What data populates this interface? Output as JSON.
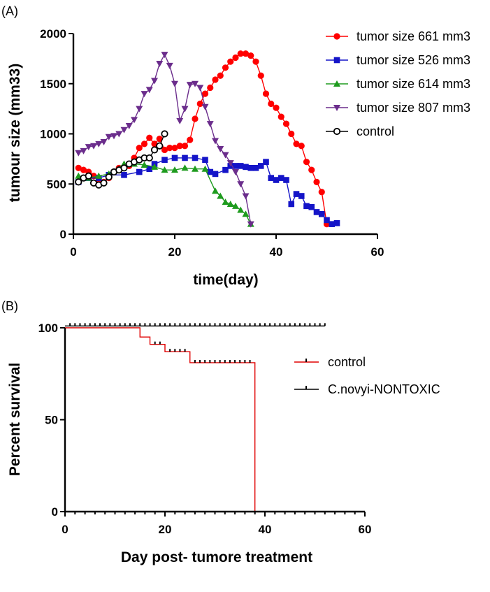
{
  "chart_data": [
    {
      "panel": "(A)",
      "type": "line",
      "xlabel": "time(day)",
      "ylabel": "tumour size (mm33)",
      "xlim": [
        0,
        60
      ],
      "ylim": [
        0,
        2000
      ],
      "xticks": [
        "0",
        "20",
        "40",
        "60"
      ],
      "yticks": [
        "0",
        "500",
        "1000",
        "1500",
        "2000"
      ],
      "legend_position": "top-right",
      "series": [
        {
          "name": "tumor size 661 mm3",
          "color": "#ff0000",
          "marker": "circle",
          "x": [
            1,
            2,
            3,
            4,
            5,
            6,
            7,
            8,
            9,
            10,
            11,
            12,
            13,
            14,
            15,
            16,
            17,
            18,
            19,
            20,
            21,
            22,
            23,
            24,
            25,
            26,
            27,
            28,
            29,
            30,
            31,
            32,
            33,
            34,
            35,
            36,
            37,
            38,
            39,
            40,
            41,
            42,
            43,
            44,
            45,
            46,
            47,
            48,
            49,
            50
          ],
          "y": [
            660,
            640,
            620,
            580,
            520,
            520,
            560,
            620,
            660,
            660,
            680,
            760,
            860,
            900,
            960,
            900,
            950,
            840,
            860,
            860,
            880,
            880,
            940,
            1150,
            1300,
            1400,
            1460,
            1540,
            1580,
            1660,
            1720,
            1760,
            1800,
            1800,
            1780,
            1720,
            1580,
            1400,
            1300,
            1260,
            1170,
            1100,
            1000,
            900,
            880,
            720,
            640,
            520,
            420,
            100
          ]
        },
        {
          "name": "tumor size 526  mm3",
          "color": "#1414c8",
          "marker": "square",
          "x": [
            1,
            3,
            5,
            7,
            10,
            13,
            15,
            16,
            18,
            20,
            22,
            24,
            26,
            27,
            28,
            30,
            31,
            32,
            33,
            34,
            35,
            36,
            37,
            38,
            39,
            40,
            41,
            42,
            43,
            44,
            45,
            46,
            47,
            48,
            49,
            50,
            51,
            52
          ],
          "y": [
            520,
            560,
            560,
            590,
            590,
            620,
            650,
            700,
            740,
            760,
            760,
            760,
            740,
            620,
            600,
            640,
            680,
            680,
            680,
            670,
            660,
            660,
            680,
            720,
            560,
            540,
            560,
            540,
            300,
            400,
            380,
            280,
            270,
            220,
            200,
            140,
            100,
            110
          ]
        },
        {
          "name": "tumor size 614 mm3",
          "color": "#1e9b1e",
          "marker": "triangle-up",
          "x": [
            1,
            3,
            5,
            7,
            10,
            12,
            14,
            16,
            18,
            20,
            22,
            24,
            26,
            28,
            29,
            30,
            31,
            32,
            33,
            34,
            35
          ],
          "y": [
            580,
            560,
            580,
            600,
            700,
            700,
            690,
            670,
            640,
            640,
            660,
            650,
            650,
            430,
            380,
            320,
            300,
            280,
            240,
            200,
            100
          ]
        },
        {
          "name": "tumor size 807 mm3",
          "color": "#6b2d8c",
          "marker": "triangle-down",
          "x": [
            1,
            2,
            3,
            4,
            5,
            6,
            7,
            8,
            9,
            10,
            11,
            12,
            13,
            14,
            15,
            16,
            17,
            18,
            19,
            20,
            21,
            22,
            23,
            24,
            25,
            26,
            27,
            28,
            29,
            30,
            31,
            32,
            33,
            34,
            35
          ],
          "y": [
            810,
            830,
            870,
            880,
            900,
            920,
            970,
            980,
            1000,
            1040,
            1080,
            1140,
            1250,
            1400,
            1440,
            1530,
            1700,
            1790,
            1680,
            1500,
            1130,
            1250,
            1490,
            1500,
            1460,
            1270,
            1100,
            930,
            850,
            790,
            710,
            620,
            500,
            380,
            100
          ]
        },
        {
          "name": "control",
          "color": "#000000",
          "marker": "open-circle",
          "x": [
            1,
            2,
            3,
            4,
            5,
            6,
            7,
            8,
            9,
            10,
            11,
            12,
            13,
            14,
            15,
            16,
            17,
            18
          ],
          "y": [
            520,
            560,
            580,
            510,
            490,
            510,
            570,
            620,
            640,
            660,
            700,
            720,
            740,
            760,
            760,
            840,
            880,
            1000
          ]
        }
      ]
    },
    {
      "panel": "(B)",
      "type": "line",
      "xlabel": "Day post- tumore treatment",
      "ylabel": "Percent survival",
      "xlim": [
        0,
        60
      ],
      "ylim": [
        0,
        100
      ],
      "xticks": [
        "0",
        "20",
        "40",
        "60"
      ],
      "yticks": [
        "0",
        "50",
        "100"
      ],
      "legend_position": "right",
      "series": [
        {
          "name": "control",
          "color": "#e00000",
          "step": true,
          "x": [
            0,
            15,
            17,
            20,
            25,
            38,
            38
          ],
          "y": [
            100,
            95,
            91,
            87,
            81,
            81,
            0
          ],
          "censor_x": [
            18,
            19,
            21,
            22,
            23,
            24,
            26,
            27,
            28,
            29,
            30,
            31,
            32,
            33,
            34,
            35,
            36,
            37
          ]
        },
        {
          "name": "C.novyi-NONTOXIC",
          "color": "#000000",
          "step": true,
          "x": [
            0,
            52
          ],
          "y": [
            101,
            101
          ],
          "censor_x": [
            1,
            2,
            3,
            4,
            5,
            6,
            7,
            8,
            9,
            10,
            11,
            12,
            13,
            14,
            15,
            16,
            17,
            18,
            19,
            20,
            21,
            22,
            23,
            24,
            25,
            26,
            27,
            28,
            29,
            30,
            31,
            32,
            33,
            34,
            35,
            36,
            37,
            38,
            39,
            40,
            41,
            42,
            43,
            44,
            45,
            46,
            47,
            48,
            49,
            50,
            51,
            52
          ]
        }
      ]
    }
  ]
}
